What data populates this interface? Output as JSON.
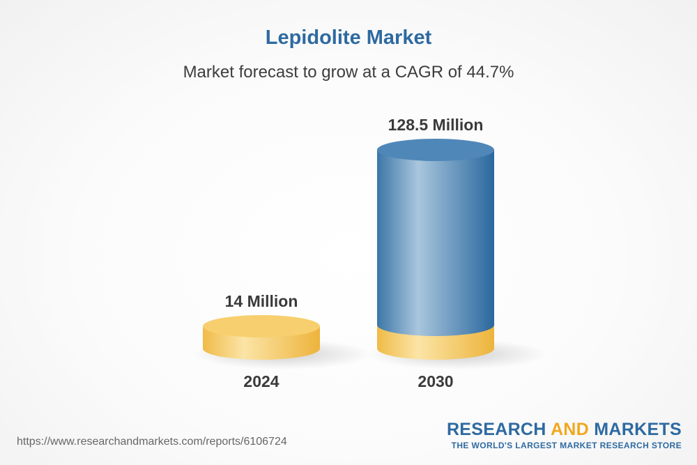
{
  "chart_data": {
    "type": "bar",
    "title": "Lepidolite Market",
    "subtitle": "Market forecast to grow at a CAGR of 44.7%",
    "categories": [
      "2024",
      "2030"
    ],
    "values": [
      14,
      128.5
    ],
    "value_labels": [
      "14 Million",
      "128.5 Million"
    ],
    "unit": "Million",
    "colors": {
      "base": "#f5c55c",
      "base_light": "#fbe6a8",
      "highlight": "#3c76a8",
      "highlight_light": "#a9c6dd"
    }
  },
  "footer": {
    "url": "https://www.researchandmarkets.com/reports/6106724",
    "brand_part1": "RESEARCH ",
    "brand_part2": "AND",
    "brand_part3": " MARKETS",
    "tagline": "THE WORLD'S LARGEST MARKET RESEARCH STORE"
  }
}
